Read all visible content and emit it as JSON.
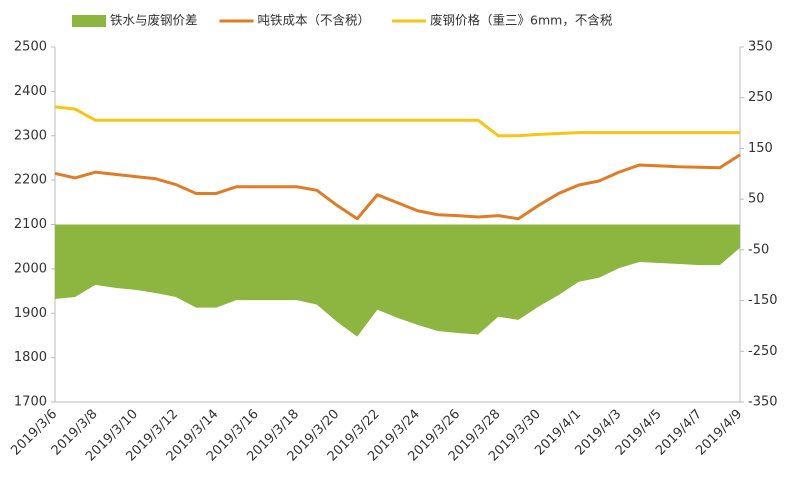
{
  "chart_data": {
    "type": "combo",
    "categories": [
      "2019/3/6",
      null,
      "2019/3/8",
      null,
      "2019/3/10",
      null,
      "2019/3/12",
      null,
      "2019/3/14",
      null,
      "2019/3/16",
      null,
      "2019/3/18",
      null,
      "2019/3/20",
      null,
      "2019/3/22",
      null,
      "2019/3/24",
      null,
      "2019/3/26",
      null,
      "2019/3/28",
      null,
      "2019/3/30",
      null,
      "2019/4/1",
      null,
      "2019/4/3",
      null,
      "2019/4/5",
      null,
      "2019/4/7",
      null,
      "2019/4/9"
    ],
    "series": [
      {
        "name": "铁水与废钢价差",
        "type": "area",
        "axis": "y2",
        "color": "#8db641",
        "values": [
          -147,
          -143,
          -119,
          -125,
          -129,
          -135,
          -143,
          -164,
          -164,
          -149,
          -149,
          -149,
          -149,
          -158,
          -192,
          -221,
          -168,
          -184,
          -198,
          -210,
          -214,
          -217,
          -182,
          -188,
          -162,
          -139,
          -113,
          -105,
          -86,
          -74,
          -76,
          -78,
          -80,
          -80,
          -46
        ]
      },
      {
        "name": "吨铁成本（不含税）",
        "type": "line",
        "color": "#e07b26",
        "values": [
          2215,
          2205,
          2218,
          2213,
          2208,
          2203,
          2190,
          2170,
          2170,
          2185,
          2185,
          2185,
          2185,
          2177,
          2143,
          2113,
          2167,
          2149,
          2131,
          2122,
          2120,
          2117,
          2120,
          2113,
          2143,
          2170,
          2189,
          2198,
          2218,
          2234,
          2232,
          2230,
          2229,
          2228,
          2257
        ]
      },
      {
        "name": "废钢价格（重三》6mm，不含税",
        "type": "line",
        "color": "#f5c518",
        "values": [
          2365,
          2360,
          2335,
          2335,
          2335,
          2335,
          2335,
          2335,
          2335,
          2335,
          2335,
          2335,
          2335,
          2335,
          2335,
          2335,
          2335,
          2335,
          2335,
          2335,
          2335,
          2335,
          2300,
          2300,
          2303,
          2305,
          2307,
          2307,
          2307,
          2307,
          2307,
          2307,
          2307,
          2307,
          2307
        ]
      }
    ],
    "ylim": [
      1700,
      2500
    ],
    "yticks": [
      1700,
      1800,
      1900,
      2000,
      2100,
      2200,
      2300,
      2400,
      2500
    ],
    "y2lim": [
      -350,
      350
    ],
    "y2ticks": [
      -350,
      -250,
      -150,
      -50,
      50,
      150,
      250,
      350
    ]
  }
}
